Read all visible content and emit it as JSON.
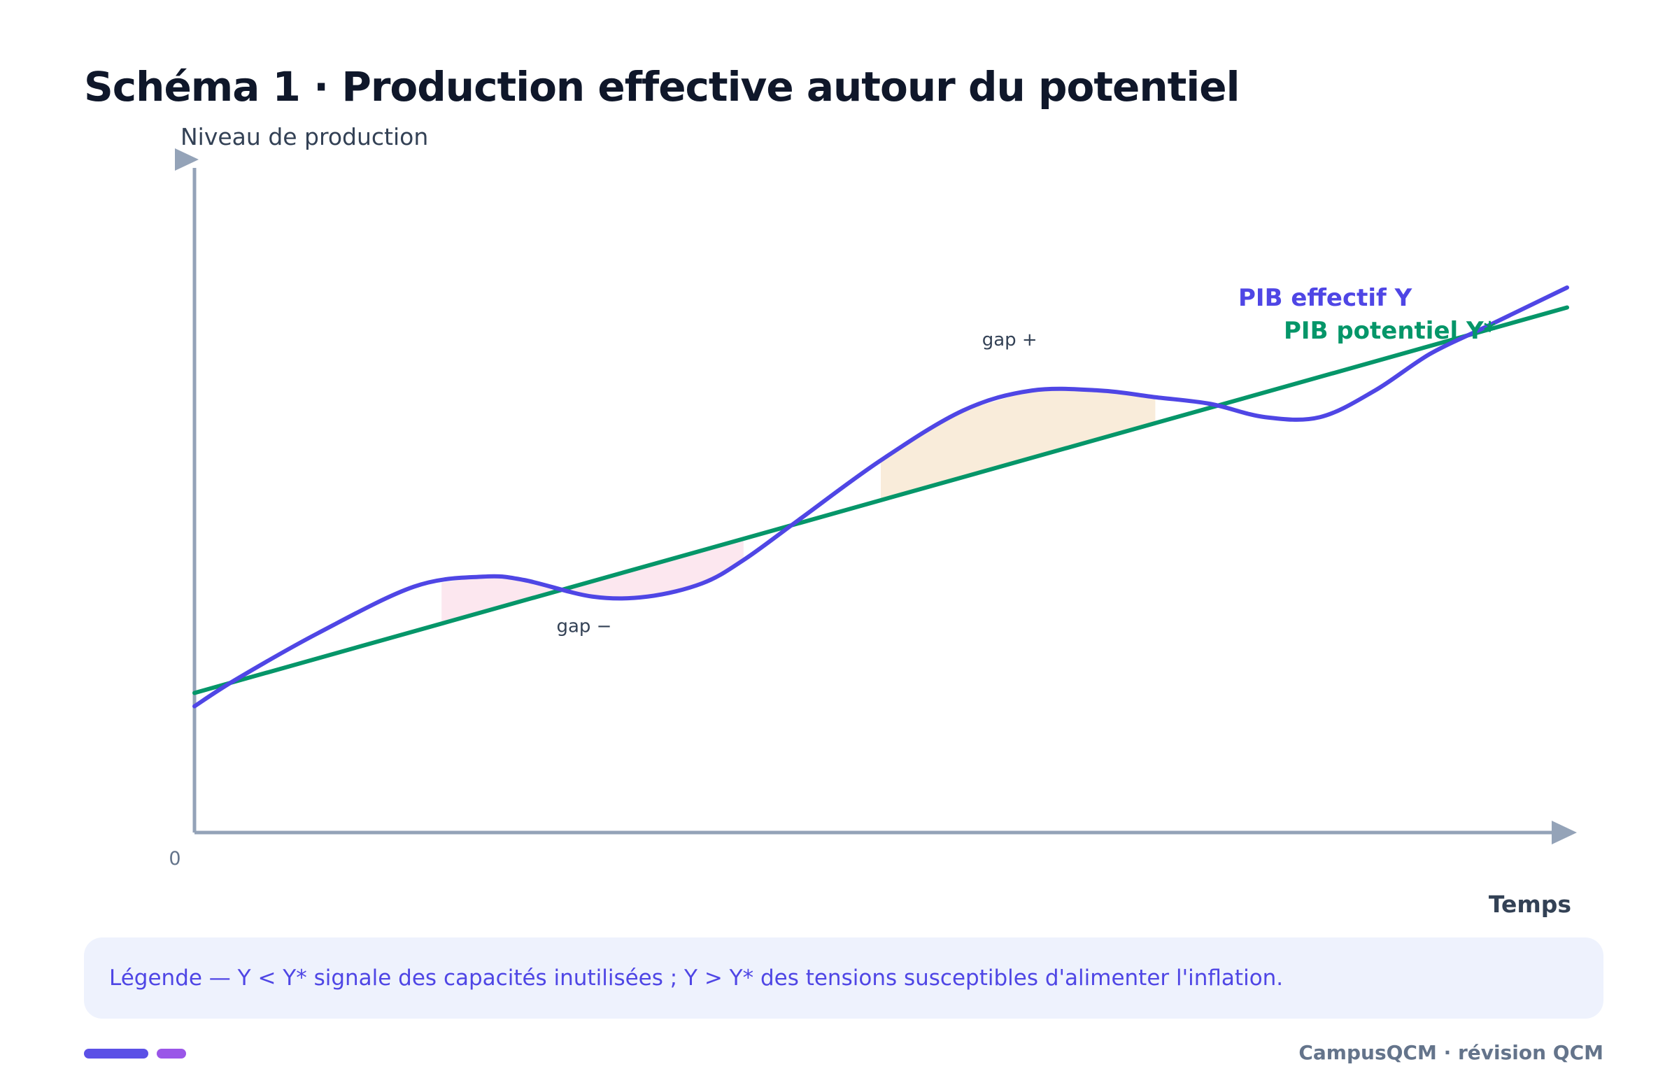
{
  "page": {
    "title": "Schéma 1 · Production effective autour du potentiel",
    "legend": "Légende — Y < Y* signale des capacités inutilisées ; Y > Y* des tensions susceptibles d'alimenter l'inflation.",
    "brand": "CampusQCM · révision QCM"
  },
  "chart_data": {
    "type": "line",
    "title": "Schéma 1 · Production effective autour du potentiel",
    "xlabel": "Temps",
    "ylabel": "Niveau de production",
    "origin_label": "0",
    "xlim": [
      0,
      100
    ],
    "ylim": [
      0,
      100
    ],
    "grid": false,
    "series": [
      {
        "name": "PIB potentiel Y*",
        "color": "#059669",
        "x": [
          0,
          100
        ],
        "y": [
          21,
          79
        ]
      },
      {
        "name": "PIB effectif Y",
        "color": "#4f46e5",
        "x": [
          0,
          3,
          9,
          16,
          21,
          24,
          29,
          33,
          37,
          40,
          44,
          50,
          56,
          61,
          66,
          70,
          74,
          78,
          82,
          86,
          90,
          94,
          100
        ],
        "y": [
          19,
          23,
          30,
          37,
          38.5,
          38,
          35.5,
          35.5,
          37.5,
          41,
          47,
          56,
          63.5,
          66.5,
          66.5,
          65.5,
          64.5,
          62.5,
          62.5,
          66.5,
          72,
          76,
          82
        ]
      }
    ],
    "shaded_regions": [
      {
        "label": "gap −",
        "kind": "negative",
        "color": "#fce7ef",
        "x_range": [
          18,
          40
        ]
      },
      {
        "label": "gap +",
        "kind": "positive",
        "color": "#f9ecda",
        "x_range": [
          50,
          70
        ]
      }
    ]
  }
}
